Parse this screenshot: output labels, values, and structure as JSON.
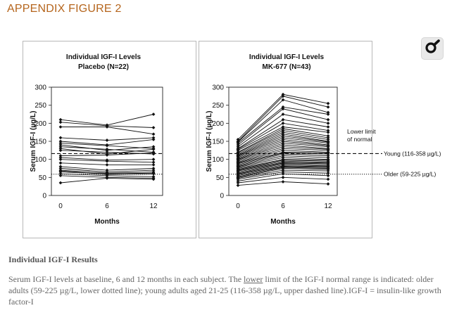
{
  "page": {
    "heading": "APPENDIX FIGURE 2",
    "tool_icon": "magnifier-icon"
  },
  "results": {
    "title": "Individual IGF-I Results",
    "caption_pre": "Serum IGF-I levels at baseline, 6 and 12 months in each subject. The ",
    "caption_lower": "lower",
    "caption_post": " limit of the IGF-I normal range is indicated: older adults (59-225 µg/L, lower dotted line); young adults aged 21-25 (116-358 µg/L, upper dashed line).IGF-I = insulin-like growth factor-I"
  },
  "colors": {
    "heading": "#b5651d",
    "caption": "#666666",
    "line": "#111111"
  },
  "chart_data": [
    {
      "type": "line",
      "title": [
        "Individual IGF-I Levels",
        "Placebo (N=22)"
      ],
      "xlabel": "Months",
      "ylabel": "Serum IGF-I (µg/L)",
      "categories": [
        "0",
        "6",
        "12"
      ],
      "ylim": [
        0,
        300
      ],
      "yticks": [
        0,
        50,
        100,
        150,
        200,
        250,
        300
      ],
      "reference_lines": [
        {
          "value": 116,
          "style": "dashed"
        },
        {
          "value": 59,
          "style": "dotted"
        }
      ],
      "series": [
        {
          "values": [
            210,
            195,
            225
          ]
        },
        {
          "values": [
            203,
            193,
            188
          ]
        },
        {
          "values": [
            190,
            190,
            170
          ]
        },
        {
          "values": [
            160,
            153,
            160
          ]
        },
        {
          "values": [
            150,
            140,
            155
          ]
        },
        {
          "values": [
            145,
            138,
            130
          ]
        },
        {
          "values": [
            140,
            125,
            135
          ]
        },
        {
          "values": [
            135,
            128,
            120
          ]
        },
        {
          "values": [
            130,
            115,
            128
          ]
        },
        {
          "values": [
            125,
            120,
            115
          ]
        },
        {
          "values": [
            110,
            112,
            118
          ]
        },
        {
          "values": [
            105,
            98,
            100
          ]
        },
        {
          "values": [
            100,
            95,
            92
          ]
        },
        {
          "values": [
            90,
            85,
            85
          ]
        },
        {
          "values": [
            80,
            70,
            75
          ]
        },
        {
          "values": [
            75,
            65,
            70
          ]
        },
        {
          "values": [
            70,
            62,
            65
          ]
        },
        {
          "values": [
            68,
            58,
            60
          ]
        },
        {
          "values": [
            65,
            60,
            62
          ]
        },
        {
          "values": [
            60,
            55,
            52
          ]
        },
        {
          "values": [
            55,
            50,
            48
          ]
        },
        {
          "values": [
            35,
            48,
            45
          ]
        }
      ]
    },
    {
      "type": "line",
      "title": [
        "Individual IGF-I Levels",
        "MK-677 (N=43)"
      ],
      "xlabel": "Months",
      "ylabel": "Serum IGF-I (µg/L)",
      "categories": [
        "0",
        "6",
        "12"
      ],
      "ylim": [
        0,
        300
      ],
      "yticks": [
        0,
        50,
        100,
        150,
        200,
        250,
        300
      ],
      "reference_lines": [
        {
          "value": 116,
          "style": "dashed",
          "label": "Young (116-358 µg/L)"
        },
        {
          "value": 59,
          "style": "dotted",
          "label": "Older (59-225 µg/L)"
        }
      ],
      "reference_header": [
        "Lower limit",
        "of normal"
      ],
      "series": [
        {
          "values": [
            155,
            280,
            255
          ]
        },
        {
          "values": [
            150,
            275,
            245
          ]
        },
        {
          "values": [
            148,
            265,
            230
          ]
        },
        {
          "values": [
            145,
            245,
            225
          ]
        },
        {
          "values": [
            140,
            240,
            210
          ]
        },
        {
          "values": [
            135,
            225,
            200
          ]
        },
        {
          "values": [
            130,
            210,
            190
          ]
        },
        {
          "values": [
            128,
            200,
            180
          ]
        },
        {
          "values": [
            125,
            190,
            175
          ]
        },
        {
          "values": [
            120,
            185,
            165
          ]
        },
        {
          "values": [
            118,
            180,
            160
          ]
        },
        {
          "values": [
            115,
            175,
            155
          ]
        },
        {
          "values": [
            112,
            170,
            150
          ]
        },
        {
          "values": [
            110,
            165,
            148
          ]
        },
        {
          "values": [
            108,
            160,
            145
          ]
        },
        {
          "values": [
            105,
            155,
            140
          ]
        },
        {
          "values": [
            102,
            150,
            138
          ]
        },
        {
          "values": [
            100,
            145,
            135
          ]
        },
        {
          "values": [
            98,
            140,
            130
          ]
        },
        {
          "values": [
            95,
            135,
            128
          ]
        },
        {
          "values": [
            92,
            130,
            125
          ]
        },
        {
          "values": [
            90,
            125,
            120
          ]
        },
        {
          "values": [
            88,
            120,
            118
          ]
        },
        {
          "values": [
            85,
            118,
            115
          ]
        },
        {
          "values": [
            82,
            115,
            110
          ]
        },
        {
          "values": [
            80,
            110,
            105
          ]
        },
        {
          "values": [
            78,
            105,
            100
          ]
        },
        {
          "values": [
            75,
            100,
            98
          ]
        },
        {
          "values": [
            72,
            98,
            95
          ]
        },
        {
          "values": [
            70,
            95,
            92
          ]
        },
        {
          "values": [
            68,
            92,
            90
          ]
        },
        {
          "values": [
            65,
            90,
            88
          ]
        },
        {
          "values": [
            62,
            88,
            85
          ]
        },
        {
          "values": [
            60,
            85,
            82
          ]
        },
        {
          "values": [
            58,
            82,
            80
          ]
        },
        {
          "values": [
            55,
            80,
            78
          ]
        },
        {
          "values": [
            52,
            78,
            75
          ]
        },
        {
          "values": [
            50,
            75,
            72
          ]
        },
        {
          "values": [
            48,
            70,
            68
          ]
        },
        {
          "values": [
            45,
            65,
            62
          ]
        },
        {
          "values": [
            40,
            60,
            55
          ]
        },
        {
          "values": [
            35,
            50,
            45
          ]
        },
        {
          "values": [
            28,
            38,
            32
          ]
        }
      ]
    }
  ]
}
